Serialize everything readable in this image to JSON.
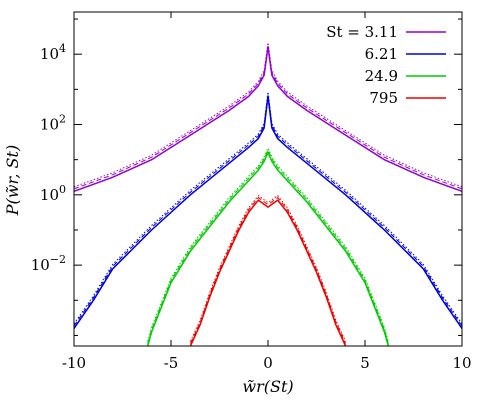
{
  "chart_data": {
    "type": "line",
    "title": "",
    "xlabel": "w̃r(St)",
    "ylabel": "P(w̃r, St)",
    "xlim": [
      -10,
      10
    ],
    "ylim_log10": [
      -4.3,
      5.2
    ],
    "y_scale": "log",
    "grid": false,
    "legend_position": "top-right",
    "x_ticks": [
      {
        "value": -10,
        "label": "-10"
      },
      {
        "value": -5,
        "label": "-5"
      },
      {
        "value": 0,
        "label": "0"
      },
      {
        "value": 5,
        "label": "5"
      },
      {
        "value": 10,
        "label": "10"
      }
    ],
    "y_ticks": [
      {
        "log10": 4,
        "base": "10",
        "exp": "4"
      },
      {
        "log10": 2,
        "base": "10",
        "exp": "2"
      },
      {
        "log10": 0,
        "base": "10",
        "exp": "0"
      },
      {
        "log10": -2,
        "base": "10",
        "exp": "−2"
      }
    ],
    "series": [
      {
        "name": "St = 3.11",
        "legend_label": "St = 3.11",
        "color": "#9400d3",
        "x": [
          -10,
          -9,
          -8,
          -6,
          -4,
          -2,
          -1,
          -0.5,
          -0.2,
          0,
          0.2,
          0.5,
          1,
          2,
          4,
          6,
          8,
          9,
          10
        ],
        "y": [
          0.1,
          0.3,
          0.5,
          1.0,
          1.7,
          2.4,
          2.8,
          3.1,
          3.4,
          4.2,
          3.4,
          3.1,
          2.8,
          2.4,
          1.7,
          1.0,
          0.5,
          0.3,
          0.1
        ]
      },
      {
        "name": "6.21",
        "legend_label": "6.21",
        "color": "#0000dd",
        "x": [
          -10,
          -9,
          -8,
          -6,
          -4,
          -2,
          -1,
          -0.5,
          -0.2,
          0,
          0.2,
          0.5,
          1,
          2,
          4,
          6,
          8,
          9,
          10
        ],
        "y": [
          -3.8,
          -3.0,
          -2.1,
          -1.0,
          0.0,
          0.9,
          1.35,
          1.6,
          1.9,
          2.8,
          1.9,
          1.6,
          1.35,
          0.9,
          0.0,
          -1.0,
          -2.1,
          -3.0,
          -3.8
        ]
      },
      {
        "name": "24.9",
        "legend_label": "24.9",
        "color": "#00cc00",
        "x": [
          -6.2,
          -6.0,
          -5.5,
          -5.0,
          -4.0,
          -3.0,
          -2.0,
          -1.0,
          -0.5,
          -0.2,
          0,
          0.2,
          0.5,
          1.0,
          2.0,
          3.0,
          4.0,
          5.0,
          5.5,
          6.0,
          6.2
        ],
        "y": [
          -4.3,
          -3.9,
          -3.2,
          -2.5,
          -1.6,
          -0.9,
          -0.2,
          0.4,
          0.7,
          0.95,
          1.2,
          0.95,
          0.7,
          0.4,
          -0.2,
          -0.9,
          -1.6,
          -2.5,
          -3.2,
          -3.9,
          -4.3
        ]
      },
      {
        "name": "795",
        "legend_label": "795",
        "color": "#ee0000",
        "x": [
          -4.0,
          -3.5,
          -3.0,
          -2.5,
          -2.0,
          -1.5,
          -1.0,
          -0.5,
          0,
          0.5,
          1.0,
          1.5,
          2.0,
          2.5,
          3.0,
          3.5,
          4.0
        ],
        "y": [
          -4.3,
          -3.7,
          -2.9,
          -2.2,
          -1.6,
          -1.0,
          -0.5,
          -0.15,
          -0.35,
          -0.15,
          -0.5,
          -1.0,
          -1.6,
          -2.2,
          -2.9,
          -3.7,
          -4.3
        ]
      }
    ]
  }
}
